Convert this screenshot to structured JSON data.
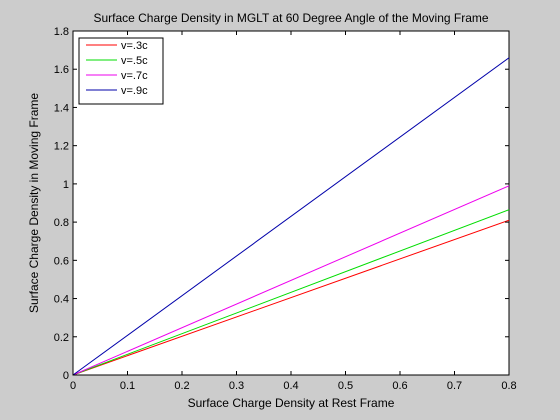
{
  "chart_data": {
    "type": "line",
    "title": "Surface Charge Density in MGLT at 60 Degree Angle of the Moving Frame",
    "xlabel": "Surface Charge Density at Rest Frame",
    "ylabel": "Surface Charge Density in Moving Frame",
    "xlim": [
      0,
      0.8
    ],
    "ylim": [
      0,
      1.8
    ],
    "xticks": [
      0,
      0.1,
      0.2,
      0.3,
      0.4,
      0.5,
      0.6,
      0.7,
      0.8
    ],
    "xtick_labels": [
      "0",
      "0.1",
      "0.2",
      "0.3",
      "0.4",
      "0.5",
      "0.6",
      "0.7",
      "0.8"
    ],
    "yticks": [
      0,
      0.2,
      0.4,
      0.6,
      0.8,
      1,
      1.2,
      1.4,
      1.6,
      1.8
    ],
    "ytick_labels": [
      "0",
      "0.2",
      "0.4",
      "0.6",
      "0.8",
      "1",
      "1.2",
      "1.4",
      "1.6",
      "1.8"
    ],
    "grid": false,
    "legend_position": "top-left",
    "x": [
      0,
      0.8
    ],
    "series": [
      {
        "name": "v=.3c",
        "color": "#ff0000",
        "values": [
          0,
          0.81
        ]
      },
      {
        "name": "v=.5c",
        "color": "#00dd00",
        "values": [
          0,
          0.865
        ]
      },
      {
        "name": "v=.7c",
        "color": "#ee00ee",
        "values": [
          0,
          0.99
        ]
      },
      {
        "name": "v=.9c",
        "color": "#0000aa",
        "values": [
          0,
          1.66
        ]
      }
    ]
  }
}
